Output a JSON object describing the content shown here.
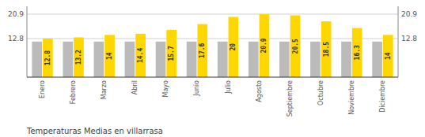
{
  "chart_data": {
    "type": "bar",
    "title": "Temperaturas Medias en villarrasa",
    "categories": [
      "Enero",
      "Febrero",
      "Marzo",
      "Abril",
      "Mayo",
      "Junio",
      "Julio",
      "Agosto",
      "Septiembre",
      "Octubre",
      "Noviembre",
      "Diciembre"
    ],
    "series": [
      {
        "color": "#BBBBBB",
        "values": [
          11.8,
          11.8,
          11.8,
          11.8,
          11.8,
          11.8,
          11.8,
          11.8,
          11.8,
          11.8,
          11.8,
          11.8
        ]
      },
      {
        "color": "#FFD700",
        "values": [
          12.8,
          13.2,
          14.0,
          14.4,
          15.7,
          17.6,
          20.0,
          20.9,
          20.5,
          18.5,
          16.3,
          14.0
        ],
        "data_labels": true
      }
    ],
    "ylim": [
      0,
      23.5
    ],
    "yticks": [
      12.8,
      20.9
    ],
    "y2lim": [
      0,
      23.5
    ],
    "y2ticks": [
      12.8,
      20.9
    ],
    "grid": true
  }
}
